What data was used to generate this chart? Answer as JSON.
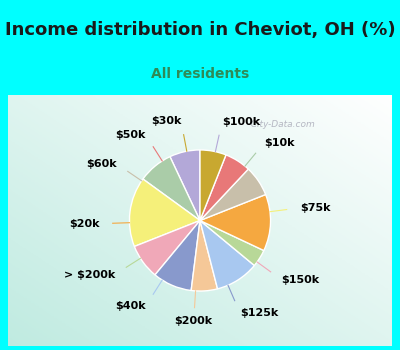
{
  "title": "Income distribution in Cheviot, OH (%)",
  "subtitle": "All residents",
  "bg_color": "#00FFFF",
  "chart_bg_top_left": "#b2ebe0",
  "chart_bg_bottom_right": "#e8f8f0",
  "labels": [
    "$100k",
    "$10k",
    "$75k",
    "$150k",
    "$125k",
    "$200k",
    "$40k",
    "> $200k",
    "$20k",
    "$60k",
    "$50k",
    "$30k"
  ],
  "values": [
    7,
    8,
    16,
    8,
    9,
    6,
    10,
    4,
    13,
    7,
    6,
    6
  ],
  "colors": [
    "#b3a8d8",
    "#aacca8",
    "#f5f07a",
    "#f0a8b8",
    "#8899cc",
    "#f5c898",
    "#a8c8f0",
    "#b8d898",
    "#f5a840",
    "#c8bfaa",
    "#e87878",
    "#c8a830"
  ],
  "title_fontsize": 13,
  "subtitle_fontsize": 10,
  "startangle": 90,
  "label_fontsize": 8
}
